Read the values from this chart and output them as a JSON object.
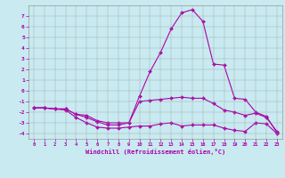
{
  "xlabel": "Windchill (Refroidissement éolien,°C)",
  "background_color": "#c8eaf0",
  "line_color": "#aa00aa",
  "grid_color": "#999999",
  "xlim": [
    -0.5,
    23.5
  ],
  "ylim": [
    -4.5,
    8.0
  ],
  "ytick_min": -4,
  "ytick_max": 7,
  "xticks": [
    0,
    1,
    2,
    3,
    4,
    5,
    6,
    7,
    8,
    9,
    10,
    11,
    12,
    13,
    14,
    15,
    16,
    17,
    18,
    19,
    20,
    21,
    22,
    23
  ],
  "yticks": [
    -4,
    -3,
    -2,
    -1,
    0,
    1,
    2,
    3,
    4,
    5,
    6,
    7
  ],
  "line1_x": [
    0,
    1,
    2,
    3,
    4,
    5,
    6,
    7,
    8,
    9,
    10,
    11,
    12,
    13,
    14,
    15,
    16,
    17,
    18,
    19,
    20,
    21,
    22,
    23
  ],
  "line1_y": [
    -1.6,
    -1.6,
    -1.7,
    -1.8,
    -2.5,
    -3.0,
    -3.4,
    -3.5,
    -3.5,
    -3.4,
    -3.3,
    -3.3,
    -3.1,
    -3.0,
    -3.3,
    -3.2,
    -3.2,
    -3.2,
    -3.5,
    -3.7,
    -3.8,
    -3.0,
    -3.1,
    -4.0
  ],
  "line2_x": [
    0,
    1,
    2,
    3,
    4,
    5,
    6,
    7,
    8,
    9,
    10,
    11,
    12,
    13,
    14,
    15,
    16,
    17,
    18,
    19,
    20,
    21,
    22,
    23
  ],
  "line2_y": [
    -1.6,
    -1.6,
    -1.7,
    -1.7,
    -2.2,
    -2.5,
    -2.9,
    -3.2,
    -3.2,
    -3.0,
    -1.0,
    -0.9,
    -0.8,
    -0.7,
    -0.6,
    -0.7,
    -0.7,
    -1.2,
    -1.8,
    -2.0,
    -2.3,
    -2.1,
    -2.5,
    -3.8
  ],
  "line3_x": [
    0,
    1,
    2,
    3,
    4,
    5,
    6,
    7,
    8,
    9,
    10,
    11,
    12,
    13,
    14,
    15,
    16,
    17,
    18,
    19,
    20,
    21,
    22,
    23
  ],
  "line3_y": [
    -1.6,
    -1.6,
    -1.7,
    -1.7,
    -2.2,
    -2.3,
    -2.8,
    -3.0,
    -3.0,
    -3.0,
    -0.5,
    1.8,
    3.6,
    5.8,
    7.3,
    7.6,
    6.5,
    2.5,
    2.4,
    -0.7,
    -0.8,
    -2.0,
    -2.4,
    -3.9
  ],
  "marker": "D",
  "markersize": 2,
  "linewidth": 0.8
}
